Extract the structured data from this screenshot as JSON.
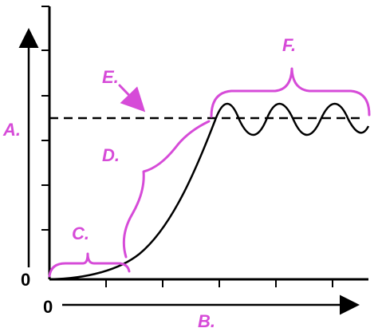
{
  "colors": {
    "axis": "#000000",
    "curve": "#000000",
    "annotation": "#d64bd8"
  },
  "axis_labels": {
    "y_origin": "0",
    "x_origin": "0"
  },
  "annotations": {
    "A": "A.",
    "B": "B.",
    "C": "C.",
    "D": "D.",
    "E": "E.",
    "F": "F."
  },
  "icons": {
    "y_arrow": "arrow-up-icon",
    "x_arrow": "arrow-right-icon",
    "e_pointer": "arrow-down-right-icon"
  }
}
